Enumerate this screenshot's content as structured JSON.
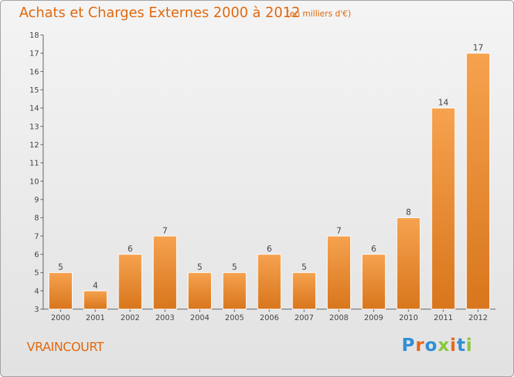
{
  "header": {
    "title": "Achats et Charges Externes 2000 à 2012",
    "subtitle": "(en milliers d'€)"
  },
  "footer": {
    "town": "VRAINCOURT",
    "logo": "Proxiti"
  },
  "colors": {
    "accent": "#e06a10",
    "bar_top": "#f6a24f",
    "bar_bottom": "#d8761c",
    "logo_letters": [
      "#2f8fd6",
      "#e8671c",
      "#2f8fd6",
      "#8cc63f",
      "#e8671c",
      "#2f8fd6",
      "#8cc63f"
    ]
  },
  "chart_data": {
    "type": "bar",
    "title": "Achats et Charges Externes 2000 à 2012",
    "subtitle": "(en milliers d'€)",
    "categories": [
      "2000",
      "2001",
      "2002",
      "2003",
      "2004",
      "2005",
      "2006",
      "2007",
      "2008",
      "2009",
      "2010",
      "2011",
      "2012"
    ],
    "values": [
      5,
      4,
      6,
      7,
      5,
      5,
      6,
      5,
      7,
      6,
      8,
      14,
      17
    ],
    "data_labels": [
      "5",
      "4",
      "6",
      "7",
      "5",
      "5",
      "6",
      "5",
      "7",
      "6",
      "8",
      "14",
      "17"
    ],
    "ylim": [
      3,
      18
    ],
    "yticks": [
      "3",
      "4",
      "5",
      "6",
      "7",
      "8",
      "9",
      "10",
      "11",
      "12",
      "13",
      "14",
      "15",
      "16",
      "17",
      "18"
    ],
    "grid": false,
    "legend": "none"
  }
}
